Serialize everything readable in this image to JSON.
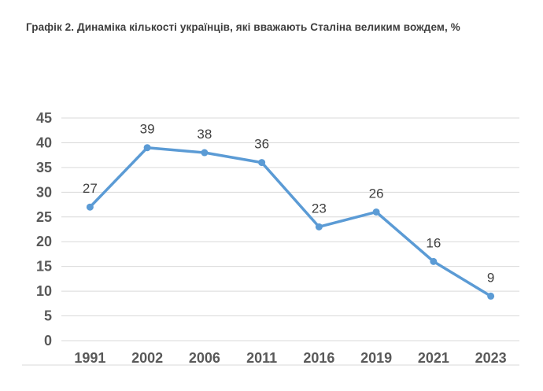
{
  "page": {
    "title": "Графік 2. Динаміка кількості українців, які вважають Сталіна великим вождем, %"
  },
  "chart_data": {
    "type": "line",
    "title": "Графік 2. Динаміка кількості українців, які вважають Сталіна великим вождем, %",
    "categories": [
      "1991",
      "2002",
      "2006",
      "2011",
      "2016",
      "2019",
      "2021",
      "2023"
    ],
    "values": [
      27,
      39,
      38,
      36,
      23,
      26,
      16,
      9
    ],
    "xlabel": "",
    "ylabel": "",
    "ylim": [
      0,
      45
    ],
    "ytick_step": 5,
    "grid": true,
    "legend_position": "none",
    "data_labels": true,
    "colors": {
      "series": "#5B9BD5",
      "gridline": "#D9D9D9",
      "axis_tick_label": "#595959",
      "data_label": "#404040",
      "background": "#FFFFFF"
    }
  }
}
